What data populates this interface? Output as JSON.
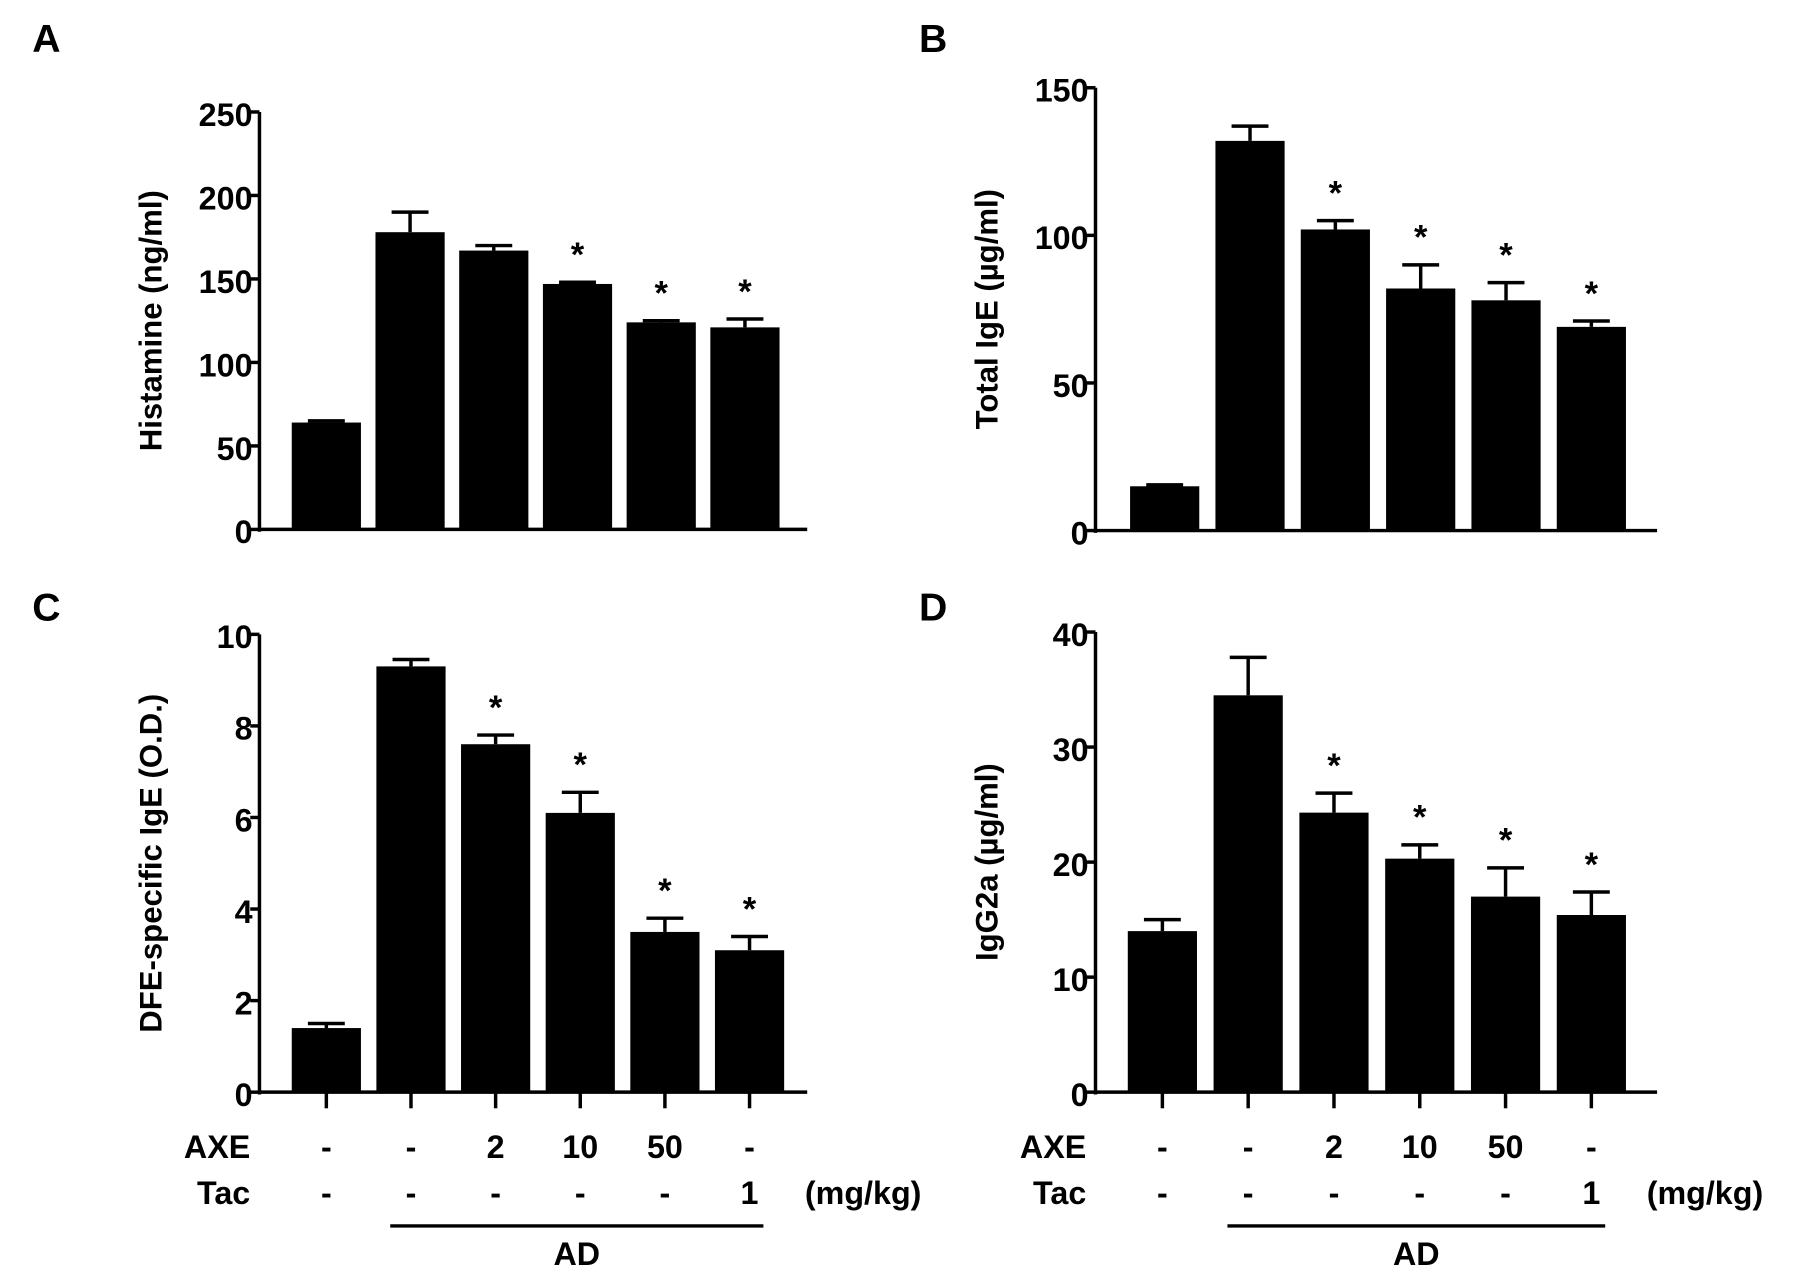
{
  "chart_data": [
    {
      "panel": "A",
      "type": "bar",
      "ylabel": "Histamine (ng/ml)",
      "ylim": [
        0,
        250
      ],
      "yticks": [
        0,
        50,
        100,
        150,
        200,
        250
      ],
      "values": [
        64,
        178,
        167,
        147,
        124,
        121
      ],
      "errors": [
        1,
        12,
        3,
        1,
        1,
        5
      ],
      "significant": [
        false,
        false,
        false,
        true,
        true,
        true
      ],
      "bar_color": "#000000"
    },
    {
      "panel": "B",
      "type": "bar",
      "ylabel": "Total IgE (µg/ml)",
      "ylim": [
        0,
        150
      ],
      "yticks": [
        0,
        50,
        100,
        150
      ],
      "values": [
        15,
        132,
        102,
        82,
        78,
        69
      ],
      "errors": [
        0.5,
        5,
        3,
        8,
        6,
        2
      ],
      "significant": [
        false,
        false,
        true,
        true,
        true,
        true
      ],
      "bar_color": "#000000"
    },
    {
      "panel": "C",
      "type": "bar",
      "ylabel": "DFE-specific IgE (O.D.)",
      "ylim": [
        0,
        10
      ],
      "yticks": [
        0,
        2,
        4,
        6,
        8,
        10
      ],
      "values": [
        1.4,
        9.3,
        7.6,
        6.1,
        3.5,
        3.1
      ],
      "errors": [
        0.1,
        0.15,
        0.2,
        0.45,
        0.3,
        0.3
      ],
      "significant": [
        false,
        false,
        true,
        true,
        true,
        true
      ],
      "bar_color": "#000000"
    },
    {
      "panel": "D",
      "type": "bar",
      "ylabel": "IgG2a (µg/ml)",
      "ylim": [
        0,
        40
      ],
      "yticks": [
        0,
        10,
        20,
        30,
        40
      ],
      "values": [
        14,
        34.5,
        24.3,
        20.3,
        17,
        15.4
      ],
      "errors": [
        1,
        3.3,
        1.7,
        1.2,
        2.5,
        2
      ],
      "significant": [
        false,
        false,
        true,
        true,
        true,
        true
      ],
      "bar_color": "#000000"
    }
  ],
  "treatment_table": {
    "rows": [
      {
        "label": "AXE",
        "values": [
          "-",
          "-",
          "2",
          "10",
          "50",
          "-"
        ]
      },
      {
        "label": "Tac",
        "values": [
          "-",
          "-",
          "-",
          "-",
          "-",
          "1"
        ]
      }
    ],
    "unit": "(mg/kg)",
    "group_label": "AD",
    "significance_marker": "*"
  }
}
